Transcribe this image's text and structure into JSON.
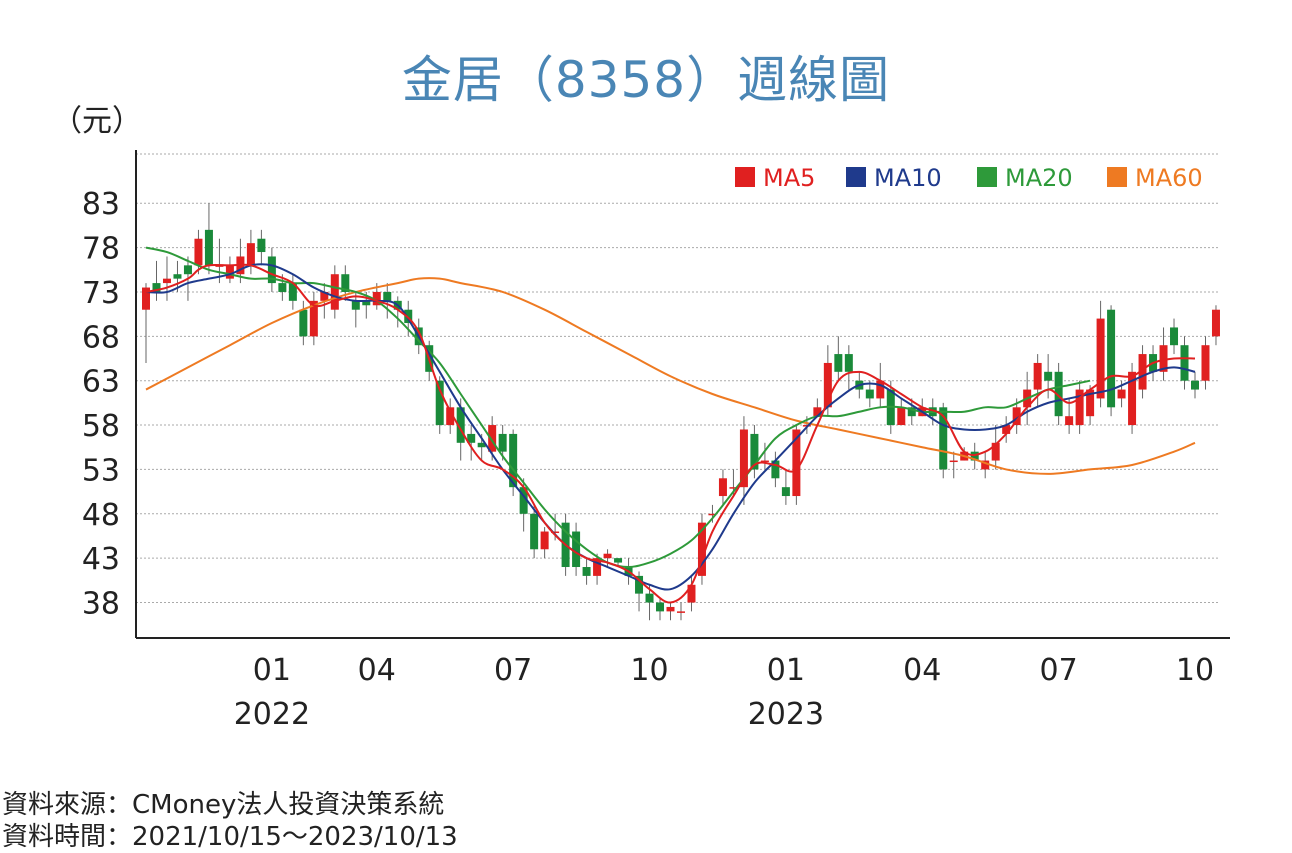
{
  "title": "金居（8358）週線圖",
  "unit": "（元）",
  "footer": {
    "source": "資料來源：CMoney法人投資決策系統",
    "period": "資料時間：2021/10/15～2023/10/13"
  },
  "chart_data": {
    "type": "candlestick",
    "y_ticks": [
      38,
      43,
      48,
      53,
      58,
      63,
      68,
      73,
      78,
      83
    ],
    "ylim": [
      34,
      89
    ],
    "x_ticks": [
      {
        "label": "01",
        "year": "2022",
        "week": 12
      },
      {
        "label": "04",
        "year": "",
        "week": 22
      },
      {
        "label": "07",
        "year": "",
        "week": 35
      },
      {
        "label": "10",
        "year": "",
        "week": 48
      },
      {
        "label": "01",
        "year": "2023",
        "week": 61
      },
      {
        "label": "04",
        "year": "",
        "week": 74
      },
      {
        "label": "07",
        "year": "",
        "week": 87
      },
      {
        "label": "10",
        "year": "",
        "week": 100
      }
    ],
    "grid": true,
    "legend_position": "top-right",
    "colors": {
      "up": "#e02020",
      "down": "#1a8a3a",
      "MA5": "#e02020",
      "MA10": "#1f3a8c",
      "MA20": "#2e9a3a",
      "MA60": "#ee7a22"
    },
    "legend": [
      "MA5",
      "MA10",
      "MA20",
      "MA60"
    ],
    "candles": [
      [
        71,
        73.5,
        65,
        74
      ],
      [
        74,
        73,
        72,
        76.5
      ],
      [
        74,
        74.5,
        72,
        77
      ],
      [
        75,
        74.5,
        73,
        76.5
      ],
      [
        76,
        75,
        72,
        77
      ],
      [
        76,
        79,
        75,
        80
      ],
      [
        80,
        76,
        75,
        83
      ],
      [
        76,
        76,
        74,
        79
      ],
      [
        74.5,
        76,
        74,
        77
      ],
      [
        75,
        77,
        74,
        79
      ],
      [
        76,
        78.5,
        75,
        80
      ],
      [
        79,
        77.5,
        76,
        80
      ],
      [
        77,
        74,
        73,
        78
      ],
      [
        74,
        73,
        72,
        75
      ],
      [
        74,
        72,
        71,
        75
      ],
      [
        71,
        68,
        67,
        72
      ],
      [
        68,
        72,
        67,
        73
      ],
      [
        72,
        73,
        70,
        74
      ],
      [
        71,
        75,
        70,
        76
      ],
      [
        75,
        73,
        72,
        76
      ],
      [
        72,
        71,
        69,
        73
      ],
      [
        72,
        71.5,
        70,
        73
      ],
      [
        71.5,
        73,
        71,
        74
      ],
      [
        73,
        72,
        70,
        74
      ],
      [
        72,
        71,
        69,
        72.5
      ],
      [
        71,
        69.5,
        68,
        72
      ],
      [
        69,
        67,
        66,
        70
      ],
      [
        67,
        64,
        63,
        67.5
      ],
      [
        63,
        58,
        57,
        63.5
      ],
      [
        58,
        60,
        57,
        61
      ],
      [
        60,
        56,
        54,
        61
      ],
      [
        57,
        56,
        54,
        58
      ],
      [
        56,
        55.5,
        54,
        57
      ],
      [
        55,
        58,
        54,
        59
      ],
      [
        57,
        55,
        54,
        58
      ],
      [
        57,
        51,
        50,
        57.5
      ],
      [
        51,
        48,
        46,
        52
      ],
      [
        48,
        44,
        43,
        49
      ],
      [
        44,
        46,
        43,
        46.5
      ],
      [
        46,
        46,
        45,
        48
      ],
      [
        47,
        42,
        41,
        48
      ],
      [
        46,
        42,
        41,
        47
      ],
      [
        42,
        41,
        40,
        43
      ],
      [
        41,
        43,
        40,
        43.5
      ],
      [
        43,
        43.5,
        42,
        44
      ],
      [
        43,
        42.5,
        42,
        43
      ],
      [
        42,
        41,
        40,
        43
      ],
      [
        41,
        39,
        37,
        41.5
      ],
      [
        39,
        38,
        36,
        40
      ],
      [
        38,
        37,
        36,
        38.5
      ],
      [
        37,
        37.5,
        36,
        38
      ],
      [
        37,
        37,
        36,
        38
      ],
      [
        38,
        40,
        37,
        41
      ],
      [
        41,
        47,
        40,
        48
      ],
      [
        48,
        48,
        47,
        49
      ],
      [
        50,
        52,
        49,
        53
      ],
      [
        51,
        51,
        50,
        53
      ],
      [
        51,
        57.5,
        49,
        59
      ],
      [
        57,
        53,
        52,
        58
      ],
      [
        54,
        54,
        53,
        56
      ],
      [
        54,
        52,
        51,
        55
      ],
      [
        51,
        50,
        49,
        53
      ],
      [
        50,
        57.5,
        49,
        58
      ],
      [
        58,
        58,
        57,
        59
      ],
      [
        59,
        60,
        59,
        61
      ],
      [
        60,
        65,
        59,
        67
      ],
      [
        66,
        64,
        63,
        68
      ],
      [
        66,
        64,
        62,
        67
      ],
      [
        63,
        62,
        61,
        64
      ],
      [
        62,
        61,
        60,
        63
      ],
      [
        61,
        63,
        60,
        65
      ],
      [
        62,
        58,
        57,
        63
      ],
      [
        58,
        60,
        58,
        61
      ],
      [
        60,
        59,
        58,
        61
      ],
      [
        59,
        60,
        59,
        61
      ],
      [
        60,
        59,
        58,
        61
      ],
      [
        60,
        53,
        52,
        60.5
      ],
      [
        54,
        54,
        52,
        55
      ],
      [
        54,
        55,
        54,
        55.5
      ],
      [
        55,
        54,
        53,
        56
      ],
      [
        53,
        54,
        52,
        55
      ],
      [
        54,
        56,
        53,
        58
      ],
      [
        57,
        58,
        56,
        59
      ],
      [
        58,
        60,
        57,
        61
      ],
      [
        60,
        62,
        58,
        64
      ],
      [
        62,
        65,
        60,
        66
      ],
      [
        64,
        63,
        61,
        66
      ],
      [
        64,
        59,
        58,
        65
      ],
      [
        58,
        59,
        57,
        61
      ],
      [
        58,
        62,
        57,
        63
      ],
      [
        59,
        62,
        58,
        62.5
      ],
      [
        61,
        70,
        60,
        72
      ],
      [
        71,
        60,
        59,
        71.5
      ],
      [
        61,
        62,
        60,
        63
      ],
      [
        58,
        64,
        57,
        65
      ],
      [
        62,
        66,
        61,
        67
      ],
      [
        66,
        64,
        63,
        67
      ],
      [
        64,
        67,
        63,
        69
      ],
      [
        69,
        67,
        66,
        70
      ],
      [
        67,
        63,
        62,
        68
      ],
      [
        63,
        62,
        61,
        64
      ],
      [
        63,
        67,
        62,
        68
      ],
      [
        68,
        71,
        67,
        71.5
      ]
    ],
    "MA5": [
      [
        0,
        73
      ],
      [
        2,
        73.5
      ],
      [
        4,
        74.5
      ],
      [
        5,
        75.5
      ],
      [
        6,
        76
      ],
      [
        8,
        76
      ],
      [
        10,
        76
      ],
      [
        12,
        75
      ],
      [
        14,
        74
      ],
      [
        16,
        71.5
      ],
      [
        18,
        72
      ],
      [
        20,
        72.5
      ],
      [
        22,
        72
      ],
      [
        24,
        71
      ],
      [
        26,
        68.5
      ],
      [
        28,
        62
      ],
      [
        30,
        57.5
      ],
      [
        32,
        54
      ],
      [
        34,
        53
      ],
      [
        36,
        51
      ],
      [
        38,
        47
      ],
      [
        40,
        44.5
      ],
      [
        42,
        43
      ],
      [
        44,
        42.5
      ],
      [
        46,
        41.5
      ],
      [
        48,
        39.5
      ],
      [
        50,
        38
      ],
      [
        52,
        40
      ],
      [
        54,
        46
      ],
      [
        56,
        50
      ],
      [
        58,
        53.5
      ],
      [
        60,
        53.5
      ],
      [
        62,
        53
      ],
      [
        64,
        58
      ],
      [
        66,
        63
      ],
      [
        68,
        64
      ],
      [
        70,
        63
      ],
      [
        72,
        61.5
      ],
      [
        74,
        60
      ],
      [
        76,
        59
      ],
      [
        78,
        55
      ],
      [
        80,
        55
      ],
      [
        82,
        57
      ],
      [
        84,
        60
      ],
      [
        86,
        62
      ],
      [
        88,
        60.5
      ],
      [
        90,
        62
      ],
      [
        92,
        63.5
      ],
      [
        94,
        63.5
      ],
      [
        96,
        65
      ],
      [
        98,
        65.5
      ],
      [
        100,
        65.5
      ]
    ],
    "MA10": [
      [
        0,
        73
      ],
      [
        2,
        73
      ],
      [
        4,
        74
      ],
      [
        6,
        74.5
      ],
      [
        8,
        75
      ],
      [
        10,
        76
      ],
      [
        12,
        76
      ],
      [
        14,
        75
      ],
      [
        16,
        73.5
      ],
      [
        18,
        72.5
      ],
      [
        20,
        72
      ],
      [
        22,
        72
      ],
      [
        24,
        71.5
      ],
      [
        26,
        68
      ],
      [
        28,
        64
      ],
      [
        30,
        60
      ],
      [
        32,
        56.5
      ],
      [
        34,
        53
      ],
      [
        36,
        50
      ],
      [
        38,
        47
      ],
      [
        40,
        44.5
      ],
      [
        42,
        43
      ],
      [
        44,
        42
      ],
      [
        46,
        41
      ],
      [
        48,
        40
      ],
      [
        50,
        39.5
      ],
      [
        52,
        41
      ],
      [
        54,
        44
      ],
      [
        56,
        48
      ],
      [
        58,
        51.5
      ],
      [
        60,
        54
      ],
      [
        62,
        56.5
      ],
      [
        64,
        59
      ],
      [
        66,
        61
      ],
      [
        68,
        62.5
      ],
      [
        70,
        62.5
      ],
      [
        72,
        61
      ],
      [
        74,
        59.5
      ],
      [
        76,
        58
      ],
      [
        78,
        57.5
      ],
      [
        80,
        57.5
      ],
      [
        82,
        58
      ],
      [
        84,
        59.5
      ],
      [
        86,
        60.5
      ],
      [
        88,
        61
      ],
      [
        90,
        61.5
      ],
      [
        92,
        62
      ],
      [
        94,
        63
      ],
      [
        96,
        64
      ],
      [
        98,
        64.5
      ],
      [
        100,
        64
      ]
    ],
    "MA20": [
      [
        0,
        78
      ],
      [
        2,
        77.5
      ],
      [
        4,
        76.5
      ],
      [
        6,
        75.5
      ],
      [
        8,
        75
      ],
      [
        10,
        74.5
      ],
      [
        12,
        74.5
      ],
      [
        14,
        74
      ],
      [
        16,
        74
      ],
      [
        18,
        73.5
      ],
      [
        20,
        73
      ],
      [
        22,
        72
      ],
      [
        24,
        70
      ],
      [
        26,
        67.5
      ],
      [
        28,
        65
      ],
      [
        30,
        61.5
      ],
      [
        32,
        58
      ],
      [
        34,
        54.5
      ],
      [
        36,
        51.5
      ],
      [
        38,
        48.5
      ],
      [
        40,
        46
      ],
      [
        42,
        44
      ],
      [
        44,
        42.5
      ],
      [
        46,
        42
      ],
      [
        48,
        42.5
      ],
      [
        50,
        43.5
      ],
      [
        52,
        45
      ],
      [
        54,
        47.5
      ],
      [
        56,
        50.5
      ],
      [
        58,
        53.5
      ],
      [
        60,
        56.5
      ],
      [
        62,
        58
      ],
      [
        64,
        59
      ],
      [
        66,
        59
      ],
      [
        68,
        59.5
      ],
      [
        70,
        60
      ],
      [
        72,
        60
      ],
      [
        74,
        59.5
      ],
      [
        76,
        59.5
      ],
      [
        78,
        59.5
      ],
      [
        80,
        60
      ],
      [
        82,
        60
      ],
      [
        84,
        61
      ],
      [
        86,
        62
      ],
      [
        88,
        62.5
      ],
      [
        90,
        63
      ]
    ],
    "MA60": [
      [
        0,
        62
      ],
      [
        4,
        64.5
      ],
      [
        8,
        67
      ],
      [
        12,
        69.5
      ],
      [
        16,
        71.5
      ],
      [
        20,
        73
      ],
      [
        24,
        74
      ],
      [
        26,
        74.5
      ],
      [
        28,
        74.5
      ],
      [
        30,
        74
      ],
      [
        34,
        73
      ],
      [
        38,
        71
      ],
      [
        42,
        68.5
      ],
      [
        46,
        66
      ],
      [
        50,
        63.5
      ],
      [
        54,
        61.5
      ],
      [
        58,
        60
      ],
      [
        62,
        58.5
      ],
      [
        66,
        57.5
      ],
      [
        70,
        56.5
      ],
      [
        74,
        55.5
      ],
      [
        78,
        54.5
      ],
      [
        82,
        53
      ],
      [
        86,
        52.5
      ],
      [
        90,
        53
      ],
      [
        94,
        53.5
      ],
      [
        98,
        55
      ],
      [
        100,
        56
      ]
    ]
  }
}
